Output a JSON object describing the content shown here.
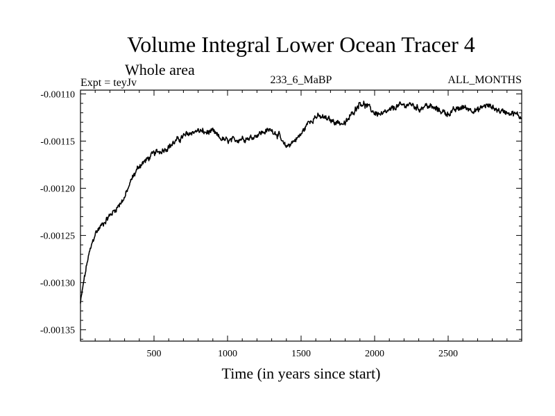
{
  "chart_data": {
    "type": "line",
    "title": "Volume Integral Lower Ocean Tracer 4",
    "subtitle": "Whole area",
    "header_left": "Expt = teyJv",
    "header_center": "233_6_MaBP",
    "header_right": "ALL_MONTHS",
    "xlabel": "Time (in years since start)",
    "ylabel": "",
    "xlim": [
      0,
      3000
    ],
    "ylim": [
      -0.001362,
      -0.001096
    ],
    "x_ticks": [
      500,
      1000,
      1500,
      2000,
      2500
    ],
    "y_ticks": [
      -0.0011,
      -0.00115,
      -0.0012,
      -0.00125,
      -0.0013,
      -0.00135
    ],
    "x_tick_labels": [
      "500",
      "1000",
      "1500",
      "2000",
      "2500"
    ],
    "y_tick_labels": [
      "-0.00110",
      "-0.00115",
      "-0.00120",
      "-0.00125",
      "-0.00130",
      "-0.00135"
    ],
    "series": [
      {
        "name": "Lower Ocean Tracer 4",
        "color": "#000000",
        "x": [
          0,
          20,
          50,
          80,
          100,
          150,
          200,
          250,
          300,
          350,
          400,
          450,
          500,
          550,
          600,
          650,
          700,
          750,
          800,
          850,
          900,
          950,
          1000,
          1050,
          1100,
          1150,
          1200,
          1250,
          1300,
          1350,
          1380,
          1400,
          1450,
          1500,
          1550,
          1600,
          1650,
          1700,
          1750,
          1800,
          1850,
          1900,
          1950,
          2000,
          2050,
          2100,
          2150,
          2200,
          2250,
          2300,
          2350,
          2400,
          2450,
          2500,
          2550,
          2600,
          2650,
          2700,
          2750,
          2800,
          2850,
          2900,
          2950,
          3000
        ],
        "values": [
          -0.001322,
          -0.001301,
          -0.001275,
          -0.001258,
          -0.001248,
          -0.001238,
          -0.001229,
          -0.00122,
          -0.00121,
          -0.00119,
          -0.001176,
          -0.00117,
          -0.001163,
          -0.00116,
          -0.001156,
          -0.00115,
          -0.001145,
          -0.001141,
          -0.001139,
          -0.001141,
          -0.00114,
          -0.001147,
          -0.00115,
          -0.001149,
          -0.001147,
          -0.001147,
          -0.001143,
          -0.00114,
          -0.001138,
          -0.001144,
          -0.001154,
          -0.001156,
          -0.00115,
          -0.001143,
          -0.00113,
          -0.001124,
          -0.001125,
          -0.001128,
          -0.00113,
          -0.001132,
          -0.00112,
          -0.001109,
          -0.001113,
          -0.00112,
          -0.001122,
          -0.001118,
          -0.001113,
          -0.001112,
          -0.001111,
          -0.001116,
          -0.001112,
          -0.001115,
          -0.001118,
          -0.001121,
          -0.001117,
          -0.001114,
          -0.001116,
          -0.001118,
          -0.001112,
          -0.001114,
          -0.001118,
          -0.001119,
          -0.001121,
          -0.001125
        ]
      }
    ]
  }
}
